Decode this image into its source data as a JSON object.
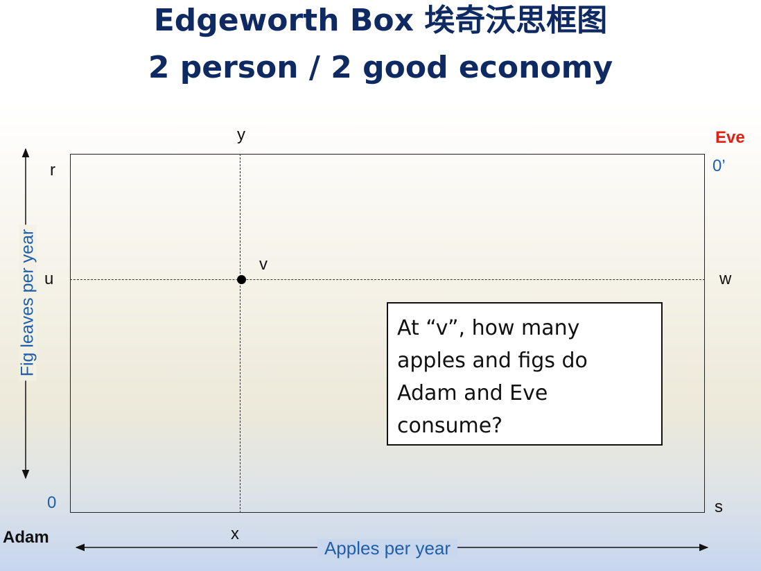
{
  "title": {
    "line1": "Edgeworth Box 埃奇沃思框图",
    "line2": "2 person / 2 good economy"
  },
  "diagram": {
    "labels": {
      "y": "y",
      "r": "r",
      "u": "u",
      "v": "v",
      "w": "w",
      "zero": "0",
      "zero_prime": "0’",
      "s": "s",
      "x": "x",
      "adam": "Adam",
      "eve": "Eve"
    },
    "axis_labels": {
      "vertical": "Fig leaves per year",
      "horizontal": "Apples per year"
    },
    "colors": {
      "title": "#0f2a63",
      "axis_label": "#1f5fa8",
      "eve": "#e02010"
    }
  },
  "callout": {
    "lines": [
      "At “v”, how many",
      "apples and figs do",
      "Adam and Eve",
      "consume?"
    ]
  }
}
